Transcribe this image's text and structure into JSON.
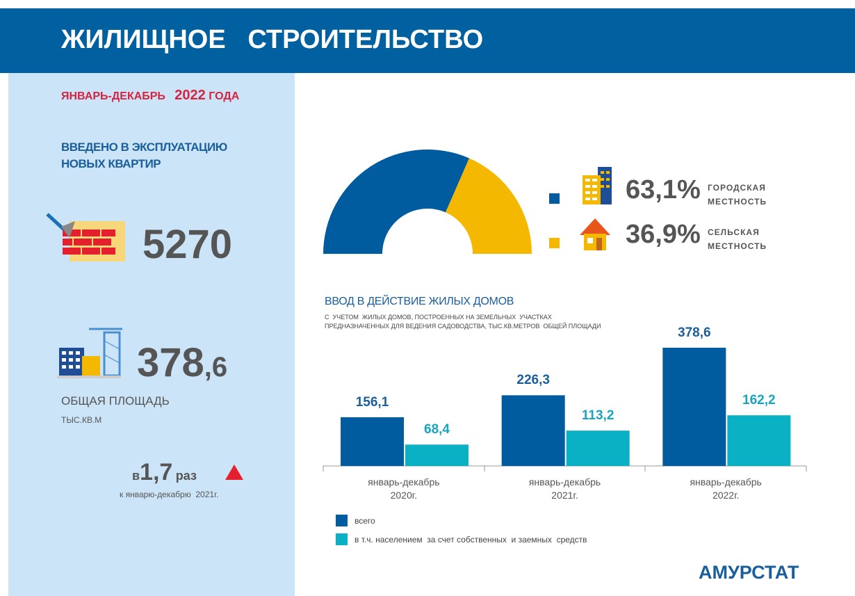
{
  "header": {
    "title": "ЖИЛИЩНОЕ   СТРОИТЕЛЬСТВО"
  },
  "period": {
    "months": "ЯНВАРЬ-ДЕКАБРЬ",
    "year": "2022",
    "suffix": "ГОДА"
  },
  "apartments": {
    "label": "ВВЕДЕНО В ЭКСПЛУАТАЦИЮ НОВЫХ КВАРТИР",
    "value": "5270"
  },
  "area": {
    "whole": "378",
    "fraction": ",6",
    "label": "ОБЩАЯ ПЛОЩАДЬ",
    "unit": "ТЫС.КВ.М"
  },
  "growth": {
    "prefix": "в",
    "value": "1,7",
    "suffix": "раз",
    "note": "к январю-декабрю  2021г."
  },
  "footer": "АМУРСТАТ",
  "chart_data": [
    {
      "type": "pie",
      "shape": "half-donut",
      "categories": [
        "ГОРОДСКАЯ МЕСТНОСТЬ",
        "СЕЛЬСКАЯ МЕСТНОСТЬ"
      ],
      "values": [
        63.1,
        36.9
      ],
      "value_labels": [
        "63,1%",
        "36,9%"
      ],
      "colors": [
        "#005b9f",
        "#f5b800"
      ]
    },
    {
      "type": "bar",
      "title": "ВВОД В ДЕЙСТВИЕ ЖИЛЫХ ДОМОВ",
      "subtitle": "С  УЧЕТОМ  ЖИЛЫХ ДОМОВ, ПОСТРОЕННЫХ НА ЗЕМЕЛЬНЫХ  УЧАСТКАХ ПРЕДНАЗНАЧЕННЫХ ДЛЯ ВЕДЕНИЯ САДОВОДСТВА, ТЫС.КВ.МЕТРОВ  ОБЩЕЙ ПЛОЩАДИ",
      "categories": [
        "январь-декабрь 2020г.",
        "январь-декабрь 2021г.",
        "январь-декабрь 2022г."
      ],
      "series": [
        {
          "name": "всего",
          "color": "#005b9f",
          "values": [
            156.1,
            226.3,
            378.6
          ],
          "value_labels": [
            "156,1",
            "226,3",
            "378,6"
          ]
        },
        {
          "name": "в т.ч. населением  за счет собственных  и заемных  средств",
          "color": "#0ab0c4",
          "values": [
            68.4,
            113.2,
            162.2
          ],
          "value_labels": [
            "68,4",
            "113,2",
            "162,2"
          ]
        }
      ]
    }
  ]
}
